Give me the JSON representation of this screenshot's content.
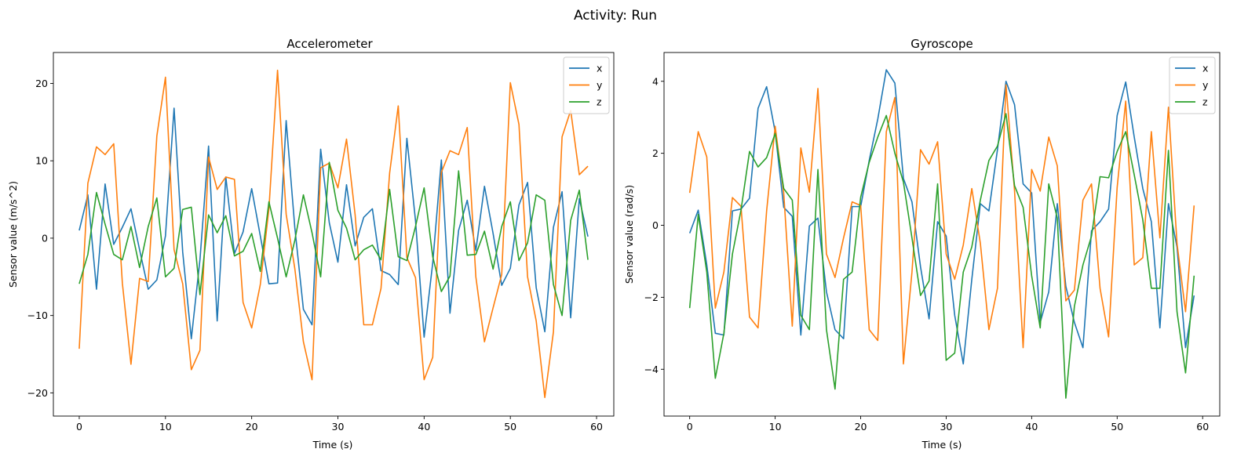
{
  "figure": {
    "title": "Activity: Run"
  },
  "chart_data": [
    {
      "type": "line",
      "title": "Accelerometer",
      "xlabel": "Time (s)",
      "ylabel": "Sensor value (m/s^2)",
      "xlim": [
        -3,
        62
      ],
      "ylim": [
        -23,
        24
      ],
      "xticks": [
        0,
        10,
        20,
        30,
        40,
        50,
        60
      ],
      "yticks": [
        -20,
        -10,
        0,
        10,
        20
      ],
      "legend": "top-right",
      "grid": false,
      "series": [
        {
          "name": "x",
          "color": "#1f77b4",
          "values": [
            1.0,
            5.6,
            -6.6,
            7.0,
            -0.8,
            1.4,
            3.8,
            -1.5,
            -6.6,
            -5.4,
            0.3,
            16.8,
            -1.8,
            -13.0,
            -2.8,
            11.9,
            -10.7,
            7.9,
            -2.0,
            0.8,
            6.4,
            0.3,
            -5.9,
            -5.8,
            15.2,
            1.4,
            -9.2,
            -11.2,
            11.5,
            2.0,
            -3.1,
            6.9,
            -1.0,
            2.7,
            3.8,
            -4.2,
            -4.7,
            -6.0,
            12.9,
            2.3,
            -12.8,
            -3.2,
            10.1,
            -9.7,
            1.0,
            4.9,
            -1.6,
            6.7,
            0.6,
            -6.1,
            -3.9,
            4.3,
            7.2,
            -6.4,
            -12.1,
            1.4,
            6.0,
            -10.3,
            5.1,
            0.2
          ]
        },
        {
          "name": "y",
          "color": "#ff7f0e",
          "values": [
            -14.3,
            7.1,
            11.8,
            10.8,
            12.2,
            -5.8,
            -16.3,
            -5.2,
            -5.6,
            13.2,
            20.8,
            -1.5,
            -5.9,
            -17.0,
            -14.5,
            10.5,
            6.3,
            7.9,
            7.6,
            -8.3,
            -11.6,
            -6.0,
            3.8,
            21.7,
            3.1,
            -3.9,
            -13.4,
            -18.3,
            9.1,
            9.7,
            6.5,
            12.8,
            3.0,
            -11.2,
            -11.2,
            -6.5,
            8.4,
            17.1,
            -2.5,
            -5.1,
            -18.3,
            -15.4,
            8.5,
            11.3,
            10.8,
            14.3,
            -5.0,
            -13.4,
            -9.0,
            -4.7,
            20.1,
            14.7,
            -5.0,
            -10.7,
            -20.6,
            -12.1,
            13.1,
            16.5,
            8.2,
            9.3
          ]
        },
        {
          "name": "z",
          "color": "#2ca02c",
          "values": [
            -5.9,
            -2.1,
            5.9,
            1.8,
            -2.1,
            -2.8,
            1.5,
            -3.8,
            1.5,
            5.2,
            -5.0,
            -3.9,
            3.7,
            4.0,
            -7.3,
            3.0,
            0.7,
            2.9,
            -2.3,
            -1.7,
            0.6,
            -4.3,
            4.7,
            0.0,
            -5.0,
            -0.3,
            5.6,
            0.7,
            -5.0,
            9.8,
            3.6,
            1.3,
            -2.8,
            -1.5,
            -0.9,
            -2.8,
            6.3,
            -2.4,
            -2.9,
            1.5,
            6.5,
            -2.4,
            -6.9,
            -4.9,
            8.7,
            -2.2,
            -2.1,
            0.9,
            -4.0,
            1.5,
            4.7,
            -2.9,
            -0.6,
            5.6,
            4.9,
            -6.0,
            -10.0,
            2.3,
            6.2,
            -2.8
          ]
        }
      ]
    },
    {
      "type": "line",
      "title": "Gyroscope",
      "xlabel": "Time (s)",
      "ylabel": "Sensor value (rad/s)",
      "xlim": [
        -3,
        62
      ],
      "ylim": [
        -5.3,
        4.8
      ],
      "xticks": [
        0,
        10,
        20,
        30,
        40,
        50,
        60
      ],
      "yticks": [
        -4,
        -2,
        0,
        2,
        4
      ],
      "legend": "top-right",
      "grid": false,
      "series": [
        {
          "name": "x",
          "color": "#1f77b4",
          "values": [
            -0.22,
            0.42,
            -1.1,
            -3.0,
            -3.05,
            0.4,
            0.45,
            0.75,
            3.25,
            3.85,
            2.6,
            0.5,
            0.25,
            -3.05,
            -0.02,
            0.2,
            -1.85,
            -2.9,
            -3.15,
            0.52,
            0.52,
            1.8,
            2.95,
            4.32,
            3.95,
            1.3,
            0.65,
            -1.15,
            -2.6,
            0.1,
            -0.3,
            -2.5,
            -3.85,
            -1.5,
            0.6,
            0.4,
            2.1,
            4.0,
            3.35,
            1.15,
            0.9,
            -2.7,
            -1.85,
            0.6,
            -1.7,
            -2.7,
            -3.4,
            -0.15,
            0.1,
            0.45,
            3.05,
            3.98,
            2.45,
            1.02,
            0.1,
            -2.85,
            0.6,
            -0.6,
            -3.4,
            -1.95
          ]
        },
        {
          "name": "y",
          "color": "#ff7f0e",
          "values": [
            0.9,
            2.6,
            1.9,
            -2.3,
            -1.3,
            0.77,
            0.53,
            -2.55,
            -2.85,
            0.4,
            2.75,
            0.9,
            -2.8,
            2.15,
            0.92,
            3.8,
            -0.8,
            -1.45,
            -0.35,
            0.65,
            0.55,
            -2.9,
            -3.2,
            2.6,
            3.55,
            -3.85,
            -1.3,
            2.1,
            1.7,
            2.32,
            -0.8,
            -1.5,
            -0.55,
            1.02,
            -0.5,
            -2.9,
            -1.75,
            3.9,
            0.95,
            -3.4,
            1.55,
            0.95,
            2.45,
            1.65,
            -2.1,
            -1.8,
            0.7,
            1.15,
            -1.75,
            -3.1,
            1.05,
            3.45,
            -1.1,
            -0.9,
            2.6,
            -0.35,
            3.28,
            -0.5,
            -2.4,
            0.55
          ]
        },
        {
          "name": "z",
          "color": "#2ca02c",
          "values": [
            -2.3,
            0.3,
            -1.3,
            -4.25,
            -3.0,
            -0.8,
            0.42,
            2.05,
            1.62,
            1.88,
            2.55,
            1.02,
            0.7,
            -2.5,
            -2.9,
            1.55,
            -2.9,
            -4.55,
            -1.5,
            -1.3,
            0.78,
            1.75,
            2.45,
            3.05,
            2.0,
            1.2,
            -0.35,
            -1.95,
            -1.55,
            1.15,
            -3.75,
            -3.55,
            -1.3,
            -0.6,
            0.7,
            1.8,
            2.2,
            3.1,
            1.1,
            0.5,
            -1.4,
            -2.85,
            1.15,
            0.2,
            -4.8,
            -2.25,
            -1.1,
            -0.3,
            1.35,
            1.32,
            2.05,
            2.6,
            1.4,
            0.15,
            -1.75,
            -1.75,
            2.08,
            -2.4,
            -4.1,
            -1.4
          ]
        }
      ]
    }
  ]
}
